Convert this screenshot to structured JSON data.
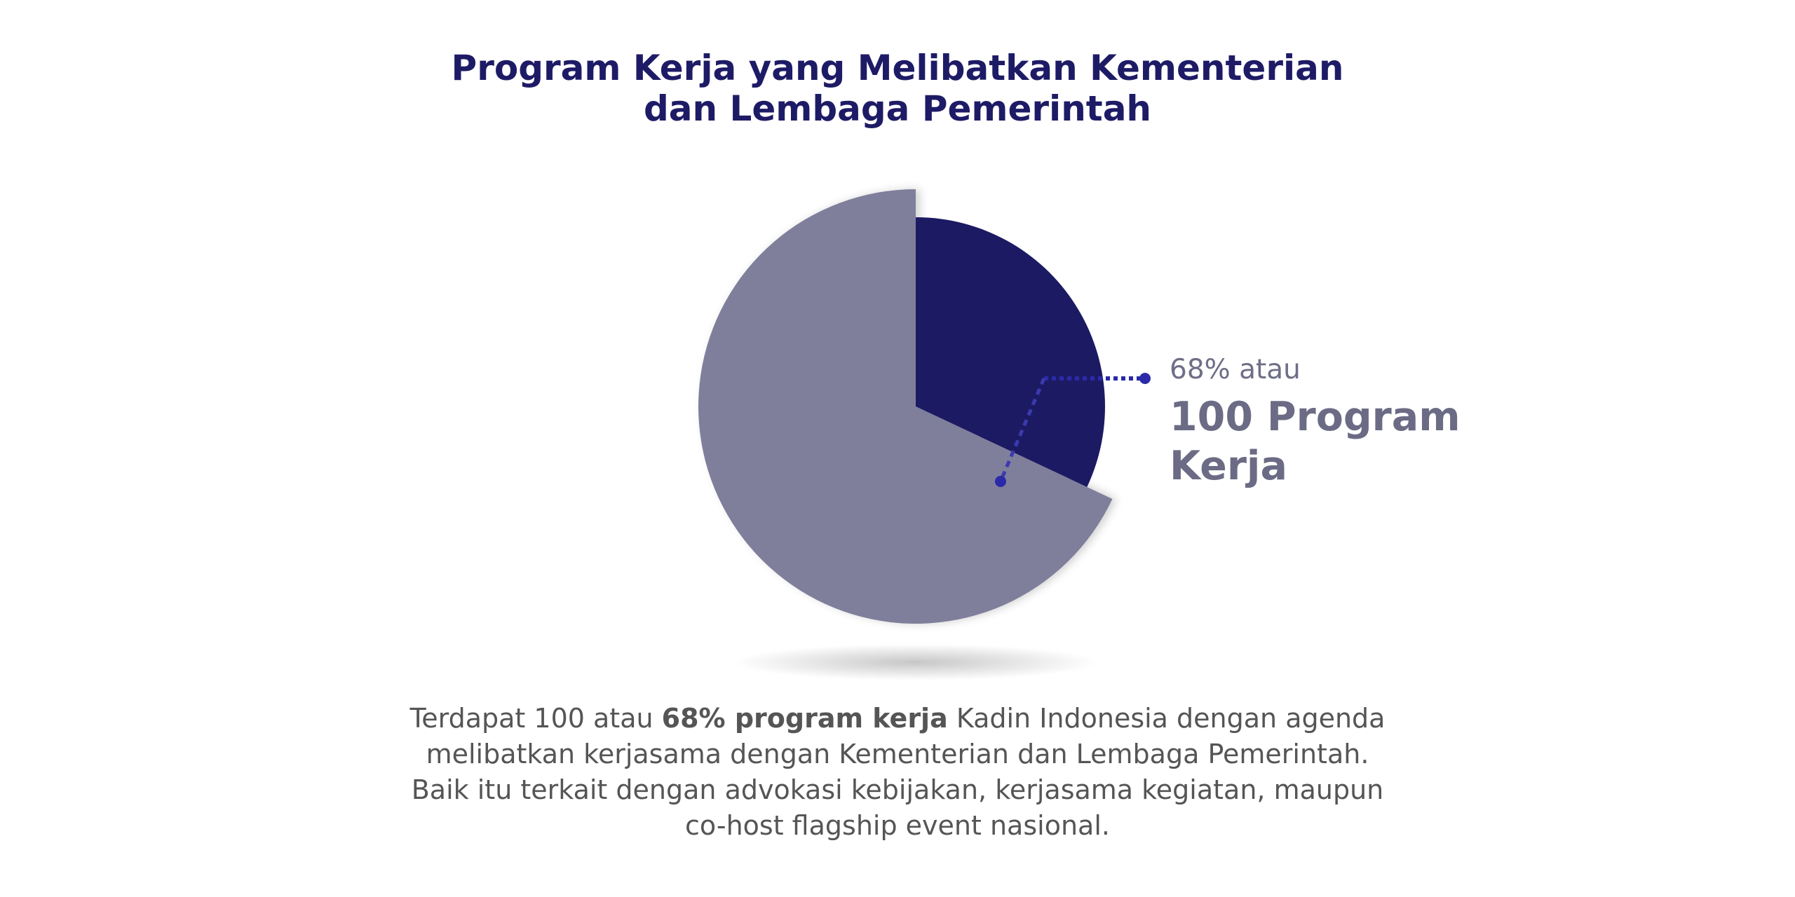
{
  "chart_data": {
    "type": "pie",
    "title": [
      "Program Kerja yang Melibatkan Kementerian",
      "dan Lembaga Pemerintah"
    ],
    "slices": [
      {
        "value": 32,
        "color": "#1c1a63"
      },
      {
        "value": 68,
        "color": "#7f7f9c"
      }
    ],
    "annotation": {
      "line1": "68% atau",
      "line2": "100 Program",
      "line3": "Kerja"
    }
  },
  "description": {
    "part1": "Terdapat 100 atau ",
    "bold": "68% program kerja",
    "part2": " Kadin Indonesia dengan agenda",
    "line2": "melibatkan kerjasama dengan Kementerian dan Lembaga Pemerintah.",
    "line3": "Baik itu terkait dengan advokasi kebijakan, kerjasama kegiatan, maupun",
    "line4": "co-host flagship event nasional."
  },
  "colors": {
    "title": "#1e1b66",
    "leader": "#2a2aa8",
    "label": "#6b6b85",
    "body": "#555555"
  }
}
